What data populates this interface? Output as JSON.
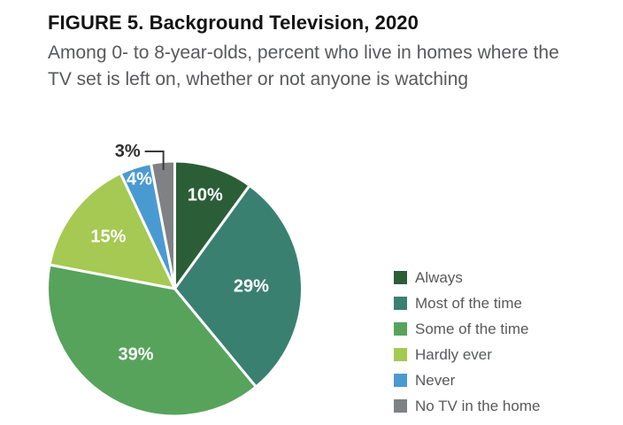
{
  "figure": {
    "title": "FIGURE 5. Background Television, 2020",
    "subtitle_line1": "Among 0- to 8-year-olds, percent who live in homes where the",
    "subtitle_line2": "TV set is left on, whether or not anyone is watching"
  },
  "chart_data": {
    "type": "pie",
    "title": "Background Television, 2020",
    "unit": "%",
    "start_angle_deg": 0,
    "direction": "clockwise",
    "legend_position": "right",
    "slice_divider_color": "#ffffff",
    "callout_line_color": "#3b3b3b",
    "slices": [
      {
        "label": "Always",
        "value": 10,
        "display": "10%",
        "color": "#2b5e37",
        "label_color": "#ffffff",
        "label_radius_frac": 0.77
      },
      {
        "label": "Most of the time",
        "value": 29,
        "display": "29%",
        "color": "#3a8071",
        "label_color": "#ffffff",
        "label_radius_frac": 0.6
      },
      {
        "label": "Some of the time",
        "value": 39,
        "display": "39%",
        "color": "#57a35c",
        "label_color": "#ffffff",
        "label_radius_frac": 0.6
      },
      {
        "label": "Hardly ever",
        "value": 15,
        "display": "15%",
        "color": "#a5c952",
        "label_color": "#ffffff",
        "label_radius_frac": 0.66
      },
      {
        "label": "Never",
        "value": 4,
        "display": "4%",
        "color": "#4a9ad2",
        "label_color": "#ffffff",
        "label_radius_frac": 0.9
      },
      {
        "label": "No TV in the home",
        "value": 3,
        "display": "3%",
        "color": "#7f8184",
        "label_color": "#2e2e2e",
        "outside_callout": true
      }
    ]
  }
}
